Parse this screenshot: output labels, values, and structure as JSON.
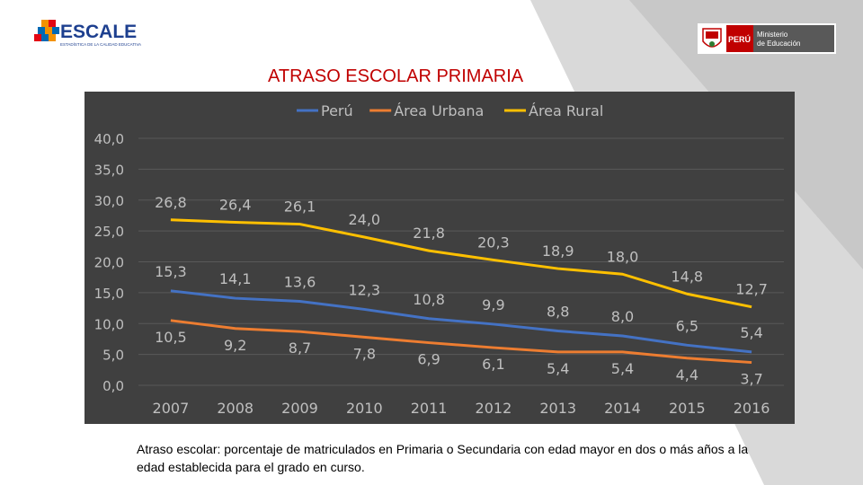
{
  "header": {
    "title": "ATRASO ESCOLAR PRIMARIA",
    "logo_left_text": "ESCALE",
    "logo_left_subtitle": "ESTADÍSTICA DE LA CALIDAD EDUCATIVA",
    "logo_right_text": "PERÚ",
    "logo_right_subtitle_line1": "Ministerio",
    "logo_right_subtitle_line2": "de Educación"
  },
  "footnote": "Atraso escolar: porcentaje de matriculados en Primaria o Secundaria con edad mayor en dos o más años a la edad establecida para el grado en curso.",
  "chart_data": {
    "type": "line",
    "title": "",
    "xlabel": "",
    "ylabel": "",
    "ylim": [
      0,
      40
    ],
    "yticks": [
      0,
      5,
      10,
      15,
      20,
      25,
      30,
      35,
      40
    ],
    "ytick_labels": [
      "0,0",
      "5,0",
      "10,0",
      "15,0",
      "20,0",
      "25,0",
      "30,0",
      "35,0",
      "40,0"
    ],
    "grid": true,
    "legend_position": "top",
    "background": "#404040",
    "categories": [
      "2007",
      "2008",
      "2009",
      "2010",
      "2011",
      "2012",
      "2013",
      "2014",
      "2015",
      "2016"
    ],
    "series": [
      {
        "name": "Perú",
        "color": "#4472c4",
        "values": [
          15.3,
          14.1,
          13.6,
          12.3,
          10.8,
          9.9,
          8.8,
          8.0,
          6.5,
          5.4
        ],
        "labels": [
          "15,3",
          "14,1",
          "13,6",
          "12,3",
          "10,8",
          "9,9",
          "8,8",
          "8,0",
          "6,5",
          "5,4"
        ]
      },
      {
        "name": "Área Urbana",
        "color": "#ed7d31",
        "values": [
          10.5,
          9.2,
          8.7,
          7.8,
          6.9,
          6.1,
          5.4,
          5.4,
          4.4,
          3.7
        ],
        "labels": [
          "10,5",
          "9,2",
          "8,7",
          "7,8",
          "6,9",
          "6,1",
          "5,4",
          "5,4",
          "4,4",
          "3,7"
        ]
      },
      {
        "name": "Área Rural",
        "color": "#ffc000",
        "values": [
          26.8,
          26.4,
          26.1,
          24.0,
          21.8,
          20.3,
          18.9,
          18.0,
          14.8,
          12.7
        ],
        "labels": [
          "26,8",
          "26,4",
          "26,1",
          "24,0",
          "21,8",
          "20,3",
          "18,9",
          "18,0",
          "14,8",
          "12,7"
        ]
      }
    ]
  }
}
